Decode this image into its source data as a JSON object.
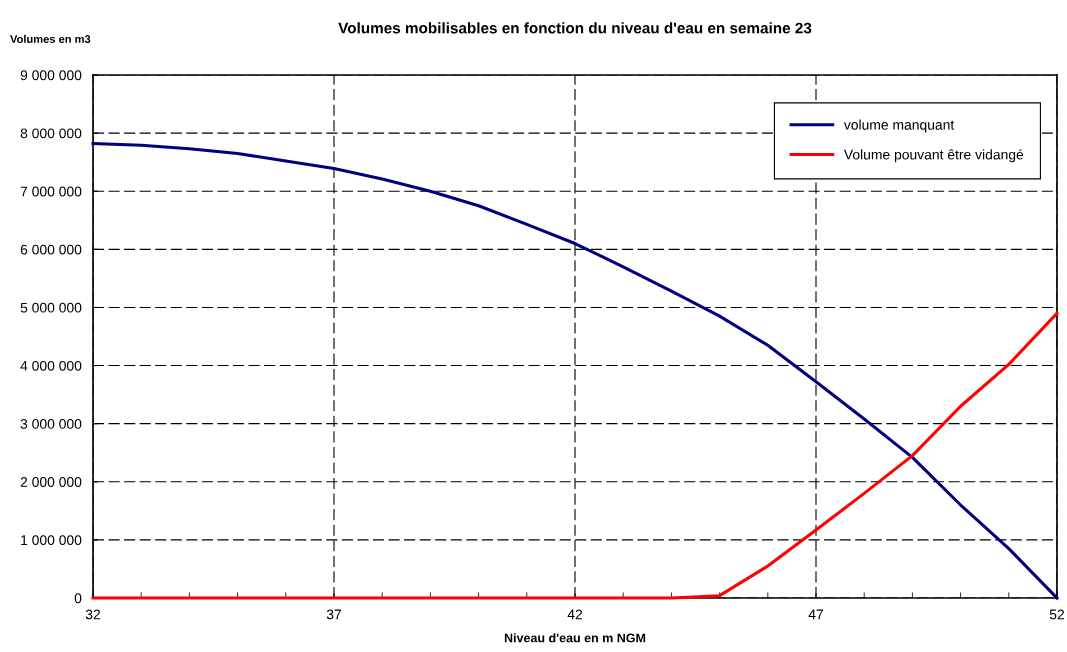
{
  "chart_data": {
    "type": "line",
    "title": "Volumes mobilisables en fonction du niveau d'eau en semaine 23",
    "xlabel": "Niveau d'eau en m NGM",
    "ylabel": "Volumes en m3",
    "x": [
      32,
      33,
      34,
      35,
      36,
      37,
      38,
      39,
      40,
      41,
      42,
      43,
      44,
      45,
      46,
      47,
      48,
      49,
      50,
      51,
      52
    ],
    "series": [
      {
        "name": "volume manquant",
        "color": "#000080",
        "values": [
          7820000,
          7790000,
          7730000,
          7650000,
          7520000,
          7390000,
          7210000,
          7000000,
          6750000,
          6430000,
          6100000,
          5700000,
          5280000,
          4850000,
          4350000,
          3720000,
          3080000,
          2420000,
          1600000,
          850000,
          0
        ]
      },
      {
        "name": "Volume pouvant être vidangé",
        "color": "#ff0000",
        "values": [
          0,
          0,
          0,
          0,
          0,
          0,
          0,
          0,
          0,
          0,
          0,
          0,
          0,
          40000,
          550000,
          1170000,
          1800000,
          2450000,
          3300000,
          4020000,
          4900000
        ]
      }
    ],
    "xlim": [
      32,
      52
    ],
    "xticks": [
      32,
      37,
      42,
      47,
      52
    ],
    "ylim": [
      0,
      9000000
    ],
    "yticks": [
      0,
      {
        "value": 1000000,
        "label": "1 000 000"
      },
      {
        "value": 2000000,
        "label": "2 000 000"
      },
      {
        "value": 3000000,
        "label": "3 000 000"
      },
      {
        "value": 4000000,
        "label": "4 000 000"
      },
      {
        "value": 5000000,
        "label": "5 000 000"
      },
      {
        "value": 6000000,
        "label": "6 000 000"
      },
      {
        "value": 7000000,
        "label": "7 000 000"
      },
      {
        "value": 8000000,
        "label": "8 000 000"
      },
      {
        "value": 9000000,
        "label": "9 000 000"
      }
    ],
    "grid": true,
    "legend": "top right",
    "marker": "none",
    "line_style": "solid"
  }
}
